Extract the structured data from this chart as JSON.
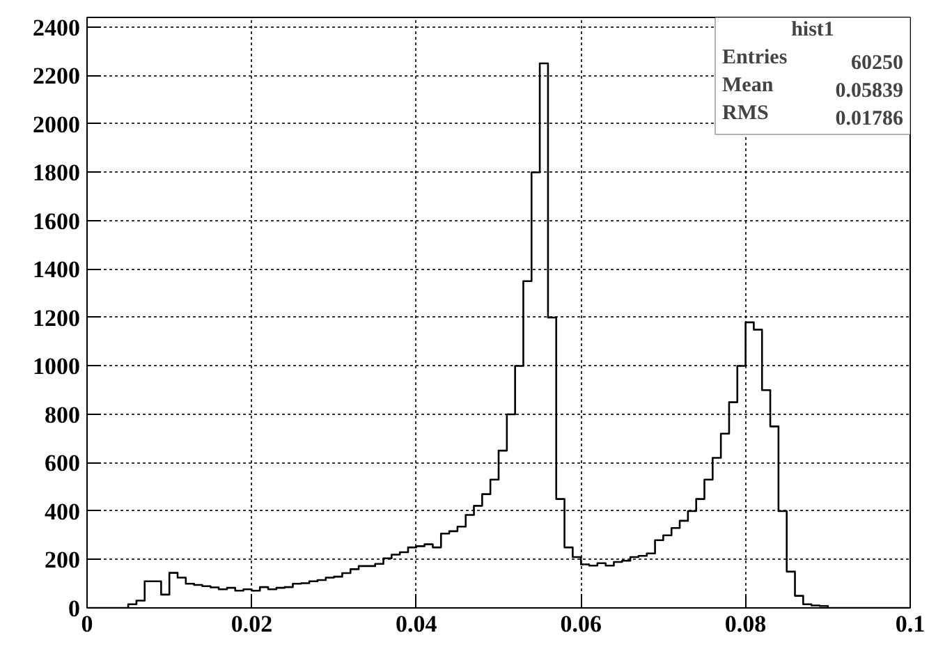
{
  "chart_data": {
    "type": "histogram",
    "title": "hist1",
    "annotations": [
      "Entries",
      "60250",
      "Mean",
      "0.05839",
      "RMS",
      "0.01786"
    ],
    "bins": [
      0,
      0.001,
      0.002,
      0.003,
      0.004,
      0.005,
      0.006,
      0.007,
      0.008,
      0.009,
      0.01,
      0.011,
      0.012,
      0.013,
      0.014,
      0.015,
      0.016,
      0.017,
      0.018,
      0.019,
      0.02,
      0.021,
      0.022,
      0.023,
      0.024,
      0.025,
      0.026,
      0.027,
      0.028,
      0.029,
      0.03,
      0.031,
      0.032,
      0.033,
      0.034,
      0.035,
      0.036,
      0.037,
      0.038,
      0.039,
      0.04,
      0.041,
      0.042,
      0.043,
      0.044,
      0.045,
      0.046,
      0.047,
      0.048,
      0.049,
      0.05,
      0.051,
      0.052,
      0.053,
      0.054,
      0.055,
      0.056,
      0.057,
      0.058,
      0.059,
      0.06,
      0.061,
      0.062,
      0.063,
      0.064,
      0.065,
      0.066,
      0.067,
      0.068,
      0.069,
      0.07,
      0.071,
      0.072,
      0.073,
      0.074,
      0.075,
      0.076,
      0.077,
      0.078,
      0.079,
      0.08,
      0.081,
      0.082,
      0.083,
      0.084,
      0.085,
      0.086,
      0.087,
      0.088,
      0.089,
      0.09,
      0.091,
      0.092,
      0.093,
      0.094,
      0.095,
      0.096,
      0.097,
      0.098,
      0.099,
      0.1
    ],
    "values": [
      0,
      0,
      0,
      0,
      0,
      15,
      30,
      110,
      110,
      55,
      145,
      125,
      100,
      95,
      90,
      85,
      77,
      83,
      71,
      77,
      71,
      86,
      77,
      83,
      86,
      100,
      102,
      110,
      115,
      125,
      129,
      144,
      160,
      173,
      173,
      182,
      205,
      220,
      230,
      250,
      255,
      263,
      250,
      307,
      317,
      336,
      384,
      422,
      470,
      530,
      650,
      800,
      1000,
      1350,
      1800,
      2250,
      1200,
      450,
      250,
      210,
      180,
      175,
      185,
      175,
      190,
      195,
      210,
      215,
      225,
      280,
      300,
      330,
      360,
      400,
      450,
      530,
      620,
      720,
      850,
      1000,
      1180,
      1150,
      900,
      750,
      400,
      150,
      50,
      15,
      10,
      8,
      0,
      0,
      0,
      0,
      0,
      0,
      0,
      0,
      0,
      0
    ],
    "color": "#000000",
    "xlim": [
      0,
      0.1
    ],
    "ylim": [
      0,
      2440
    ],
    "xticks": [
      {
        "value": 0,
        "label": "0"
      },
      0.02,
      0.04,
      0.06,
      0.08,
      0.1
    ],
    "yticks": [
      0,
      200,
      400,
      600,
      800,
      1000,
      1200,
      1400,
      1600,
      1800,
      2000,
      2200,
      2400
    ],
    "grid": true
  }
}
